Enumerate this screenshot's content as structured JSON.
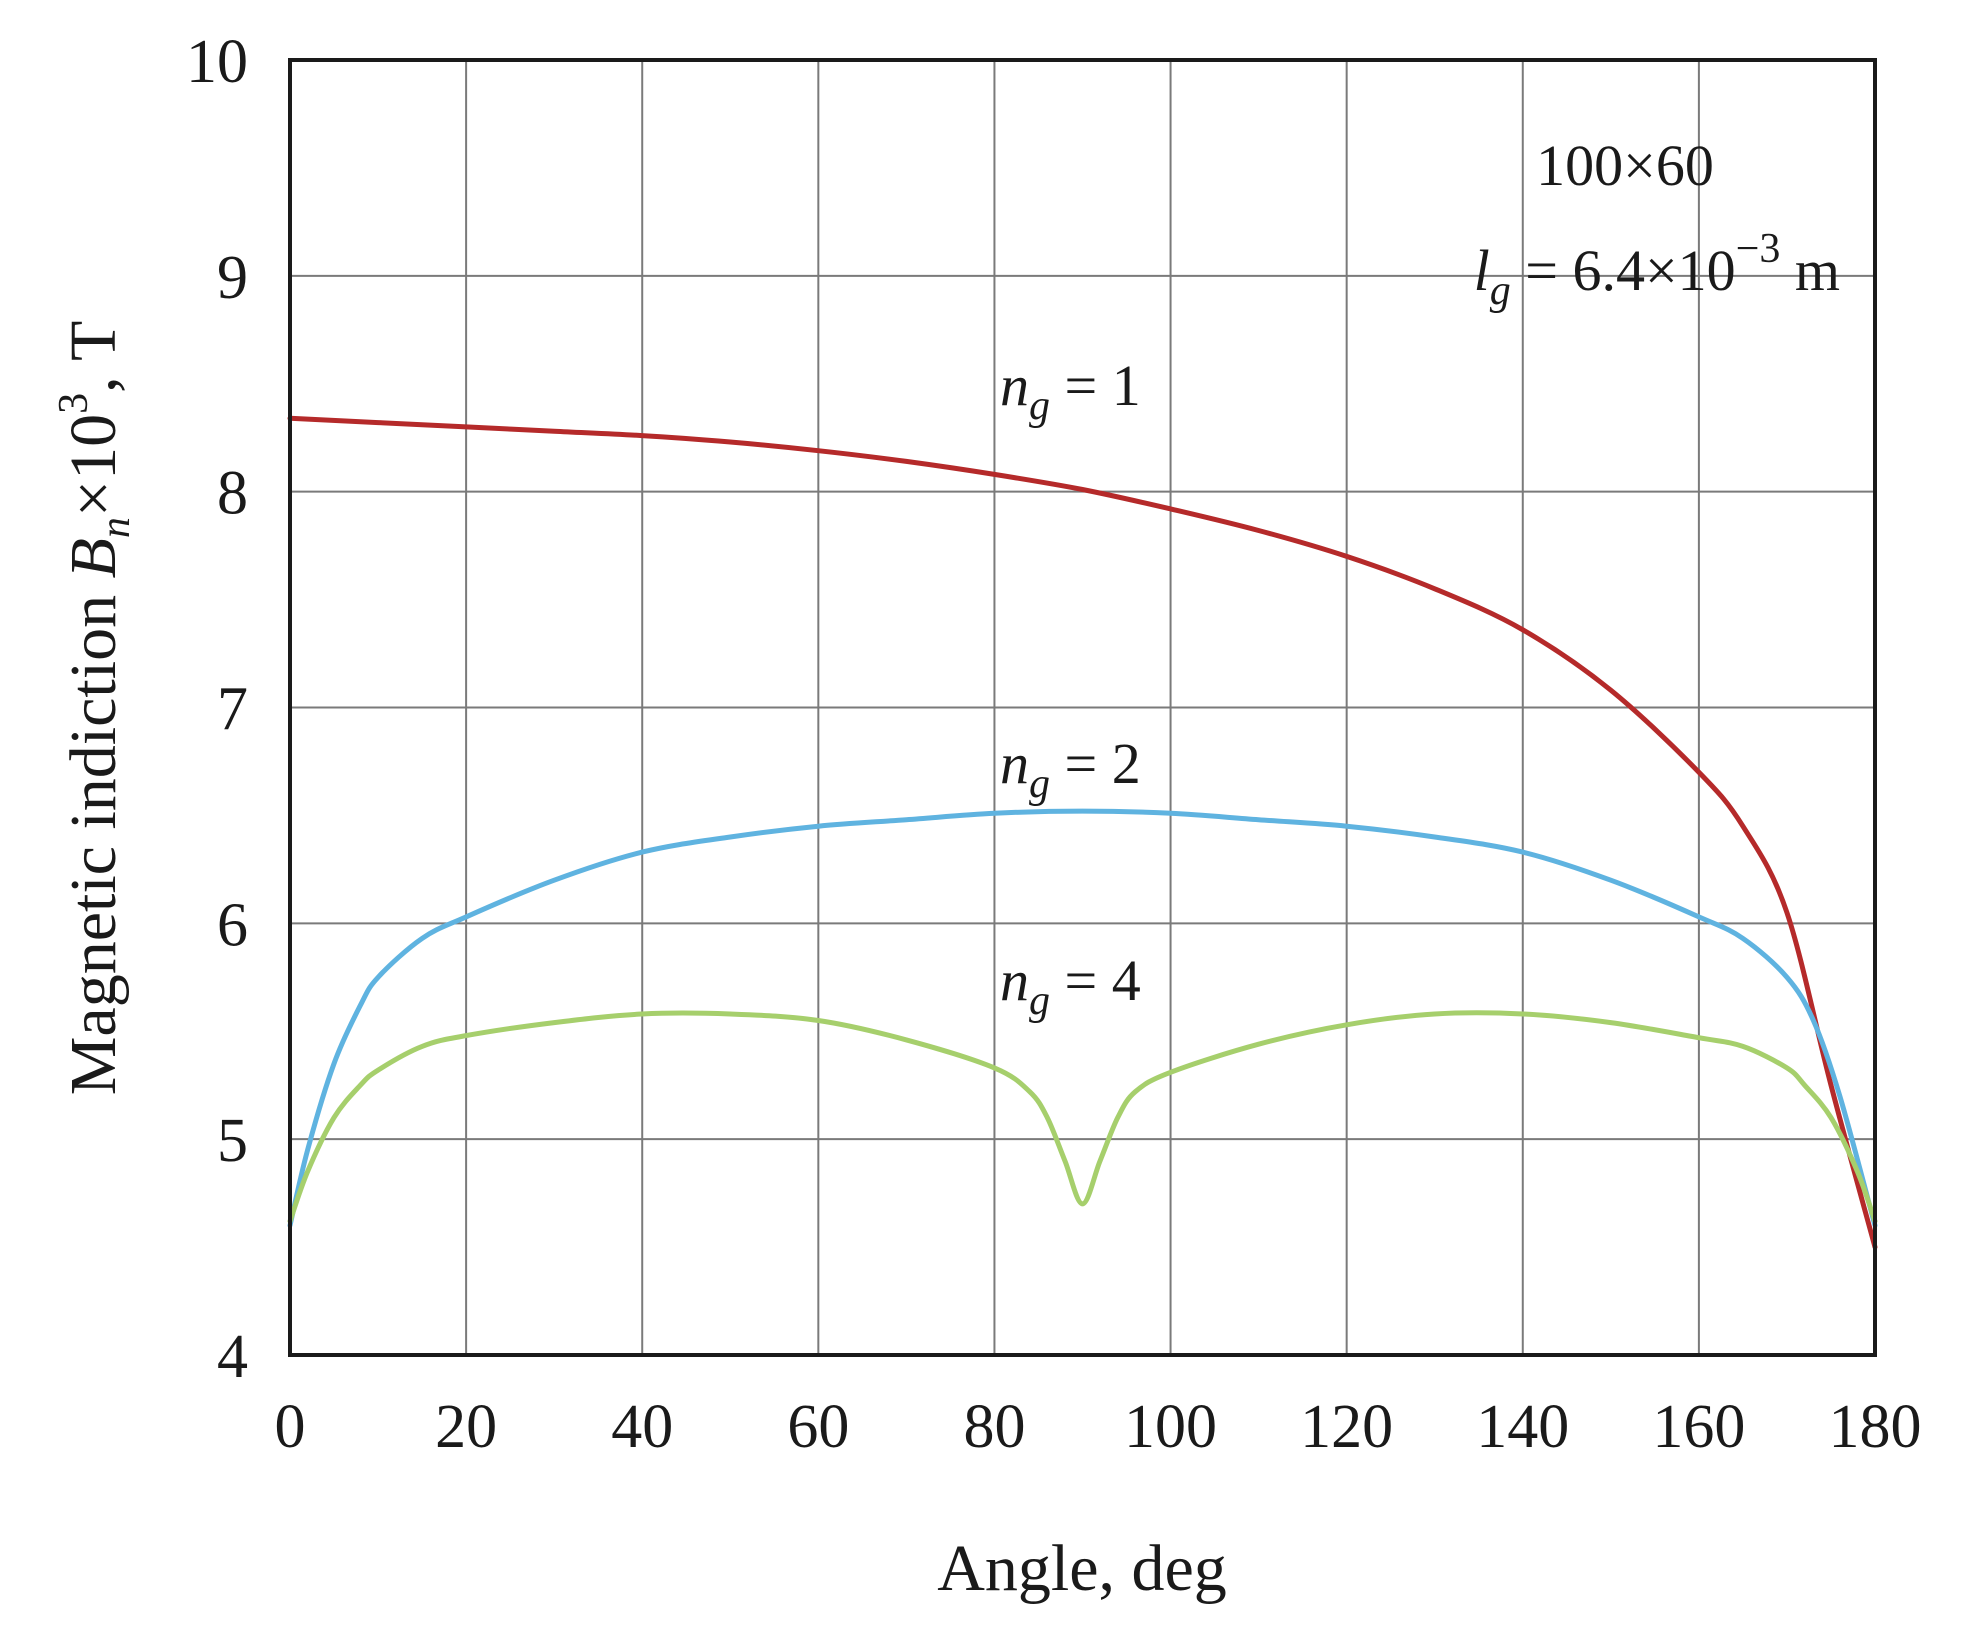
{
  "chart_data": {
    "type": "line",
    "title": "",
    "xlabel": "Angle, deg",
    "ylabel": {
      "prefix": "Magnetic indiction ",
      "var": "B",
      "sub": "n",
      "times": "×10",
      "exp": "3",
      "suffix": ", T"
    },
    "xlim": [
      0,
      180
    ],
    "ylim": [
      4,
      10
    ],
    "xticks": [
      0,
      20,
      40,
      60,
      80,
      100,
      120,
      140,
      160,
      180
    ],
    "yticks": [
      4,
      5,
      6,
      7,
      8,
      9,
      10
    ],
    "grid": true,
    "annotations": {
      "size": "100×60",
      "gap": {
        "var": "l",
        "sub": "g",
        "eq": " = 6.4×10",
        "exp": "−3",
        "unit": " m"
      }
    },
    "series": [
      {
        "name": "n_g = 1",
        "label": {
          "var": "n",
          "sub": "g",
          "eq": " = 1"
        },
        "color": "#b52a2a",
        "x": [
          0,
          10,
          20,
          30,
          40,
          50,
          60,
          70,
          80,
          90,
          100,
          110,
          120,
          130,
          140,
          150,
          160,
          165,
          170,
          175,
          180
        ],
        "y": [
          8.34,
          8.32,
          8.3,
          8.28,
          8.26,
          8.23,
          8.19,
          8.14,
          8.08,
          8.01,
          7.92,
          7.82,
          7.7,
          7.55,
          7.36,
          7.08,
          6.7,
          6.45,
          6.05,
          5.25,
          4.5
        ]
      },
      {
        "name": "n_g = 2",
        "label": {
          "var": "n",
          "sub": "g",
          "eq": " = 2"
        },
        "color": "#5fb3e0",
        "x": [
          0,
          2,
          5,
          8,
          10,
          15,
          20,
          30,
          40,
          50,
          60,
          70,
          80,
          90,
          100,
          110,
          120,
          130,
          140,
          150,
          160,
          165,
          170,
          173,
          176,
          180
        ],
        "y": [
          4.6,
          4.95,
          5.35,
          5.62,
          5.75,
          5.93,
          6.03,
          6.2,
          6.33,
          6.4,
          6.45,
          6.48,
          6.51,
          6.52,
          6.51,
          6.48,
          6.45,
          6.4,
          6.33,
          6.2,
          6.03,
          5.93,
          5.75,
          5.55,
          5.2,
          4.6
        ]
      },
      {
        "name": "n_g = 4",
        "label": {
          "var": "n",
          "sub": "g",
          "eq": " = 4"
        },
        "color": "#a6cf6c",
        "x": [
          0,
          2,
          5,
          8,
          10,
          15,
          20,
          30,
          40,
          50,
          60,
          70,
          80,
          84,
          86,
          88,
          90,
          92,
          94,
          96,
          100,
          110,
          120,
          130,
          140,
          150,
          160,
          165,
          170,
          172,
          175,
          178,
          180
        ],
        "y": [
          4.62,
          4.85,
          5.1,
          5.25,
          5.32,
          5.43,
          5.48,
          5.54,
          5.58,
          5.58,
          5.55,
          5.46,
          5.33,
          5.22,
          5.1,
          4.9,
          4.7,
          4.9,
          5.1,
          5.22,
          5.31,
          5.44,
          5.53,
          5.58,
          5.58,
          5.54,
          5.47,
          5.43,
          5.33,
          5.25,
          5.1,
          4.85,
          4.62
        ]
      }
    ]
  }
}
